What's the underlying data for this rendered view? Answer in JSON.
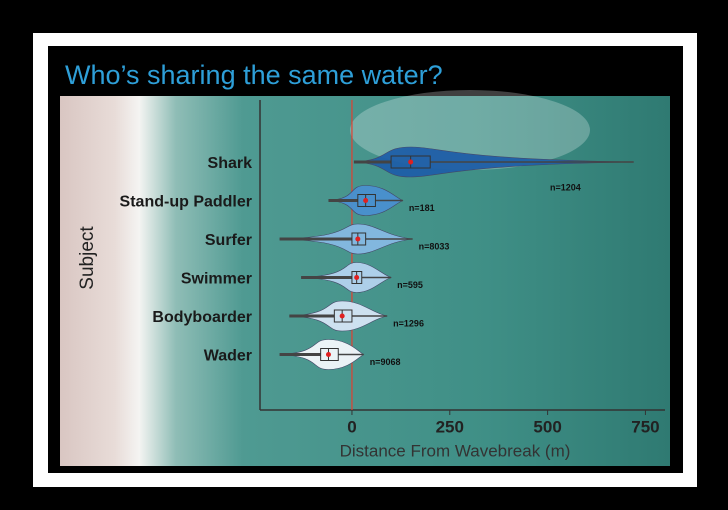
{
  "chart_data": {
    "type": "box",
    "title": "Who’s sharing the same water?",
    "x_label": "Distance From Wavebreak (m)",
    "y_label": "Subject",
    "categories": [
      "Shark",
      "Stand-up Paddler",
      "Surfer",
      "Swimmer",
      "Bodyboarder",
      "Wader"
    ],
    "colors": [
      "#1f5fa8",
      "#4a90d0",
      "#86b9e3",
      "#b3d3ef",
      "#d5e6f6",
      "#f4f8fc"
    ],
    "min": [
      5,
      -60,
      -185,
      -130,
      -160,
      -185
    ],
    "q1": [
      100,
      15,
      0,
      0,
      -45,
      -80
    ],
    "median": [
      150,
      35,
      15,
      12,
      -25,
      -60
    ],
    "q3": [
      200,
      60,
      35,
      25,
      0,
      -35
    ],
    "max": [
      720,
      130,
      155,
      100,
      90,
      30
    ],
    "sample_sizes": [
      "n=1204",
      "n=181",
      "n=8033",
      "n=595",
      "n=1296",
      "n=9068"
    ],
    "xlim": [
      -235,
      800
    ],
    "xticks": [
      0,
      250,
      500,
      750
    ]
  }
}
